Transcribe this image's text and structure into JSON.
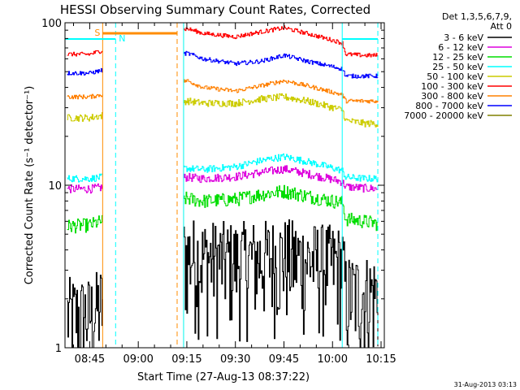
{
  "chart_data": {
    "type": "line",
    "title": "HESSI Observing Summary Count Rates, Corrected",
    "xlabel": "Start Time (27-Aug-13 08:37:22)",
    "ylabel": "Corrected Count Rate (s⁻¹ detector⁻¹)",
    "yscale": "log",
    "ylim": [
      1,
      100
    ],
    "xlim": [
      "08:37:22",
      "10:16:00"
    ],
    "x_tick_labels": [
      "08:45",
      "09:00",
      "09:15",
      "09:30",
      "09:45",
      "10:00",
      "10:15"
    ],
    "y_tick_labels": [
      "1",
      "10",
      "100"
    ],
    "legend_header": [
      "Det 1,3,5,6,7,9,",
      "Att 0"
    ],
    "legend_position": "right",
    "grid": false,
    "timestamp": "31-Aug-2013 03:13",
    "flag_labels": {
      "saa": "S",
      "night": "N"
    },
    "flag_intervals": {
      "saa": [
        [
          "08:49",
          "09:12"
        ]
      ],
      "night": [
        [
          "08:49",
          "08:53"
        ],
        [
          "10:03",
          "10:14"
        ]
      ]
    },
    "vertical_markers": [
      {
        "time": "08:49",
        "color": "#ff8c00",
        "style": "solid"
      },
      {
        "time": "08:53",
        "color": "#00ffff",
        "style": "dashed"
      },
      {
        "time": "09:12",
        "color": "#ff8c00",
        "style": "dashed"
      },
      {
        "time": "09:14",
        "color": "#ff8c00",
        "style": "solid"
      },
      {
        "time": "09:14",
        "color": "#00ffff",
        "style": "solid"
      },
      {
        "time": "10:03",
        "color": "#00ffff",
        "style": "solid"
      },
      {
        "time": "10:14",
        "color": "#00ffff",
        "style": "dashed"
      }
    ],
    "data_gaps": [
      [
        "08:49",
        "09:14"
      ]
    ],
    "time_samples": [
      "08:38",
      "08:45",
      "09:15",
      "09:20",
      "09:30",
      "09:38",
      "09:45",
      "09:52",
      "10:03",
      "10:04",
      "10:10",
      "10:14"
    ],
    "series": [
      {
        "name": "3 - 6 keV",
        "color": "#000000",
        "noise": 0.7,
        "values": [
          1.6,
          1.6,
          3.8,
          3.6,
          3.5,
          3.6,
          3.7,
          3.5,
          3.3,
          2.2,
          2.2,
          2.2
        ]
      },
      {
        "name": "6 - 12 keV",
        "color": "#dd00dd",
        "noise": 0.06,
        "values": [
          9.5,
          9.5,
          11.2,
          11.0,
          11.3,
          12.0,
          12.6,
          11.8,
          10.5,
          9.8,
          9.6,
          9.5
        ]
      },
      {
        "name": "12 - 25 keV",
        "color": "#00dd00",
        "noise": 0.1,
        "values": [
          5.6,
          5.7,
          8.3,
          8.0,
          8.2,
          8.8,
          9.2,
          8.6,
          7.8,
          6.2,
          6.0,
          5.8
        ]
      },
      {
        "name": "25 - 50 keV",
        "color": "#00ffff",
        "noise": 0.05,
        "values": [
          11.0,
          11.0,
          12.7,
          12.5,
          13.0,
          14.2,
          15.0,
          14.0,
          12.3,
          11.2,
          11.0,
          11.0
        ]
      },
      {
        "name": "50 - 100 keV",
        "color": "#cccc00",
        "noise": 0.05,
        "values": [
          26,
          26,
          33,
          32,
          32,
          34,
          35,
          33,
          29,
          25,
          24,
          24
        ]
      },
      {
        "name": "100 - 300 keV",
        "color": "#ff0000",
        "noise": 0.03,
        "values": [
          64,
          64,
          92,
          86,
          82,
          88,
          93,
          86,
          75,
          64,
          63,
          63
        ]
      },
      {
        "name": "300 - 800 keV",
        "color": "#ff8000",
        "noise": 0.03,
        "values": [
          35,
          35,
          44,
          40,
          38,
          41,
          44,
          41,
          36,
          33,
          33,
          33
        ]
      },
      {
        "name": "800 - 7000 keV",
        "color": "#0000ff",
        "noise": 0.03,
        "values": [
          49,
          49,
          65,
          60,
          56,
          58,
          63,
          58,
          52,
          47,
          47,
          47
        ]
      },
      {
        "name": "7000 - 20000 keV",
        "color": "#808000",
        "noise": 0.0,
        "values": [
          1.0,
          1.0,
          1.0,
          1.0,
          1.0,
          1.0,
          1.0,
          1.0,
          1.0,
          1.0,
          1.0,
          1.0
        ]
      }
    ]
  }
}
